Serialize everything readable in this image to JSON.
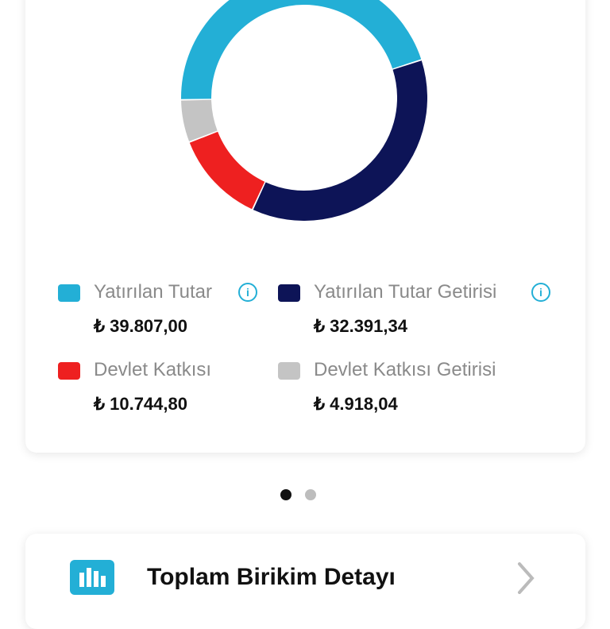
{
  "chart_data": {
    "type": "donut",
    "categories": [
      "Yatırılan Tutar",
      "Yatırılan Tutar Getirisi",
      "Devlet Katkısı",
      "Devlet Katkısı Getirisi"
    ],
    "values": [
      39807.0,
      32391.34,
      10744.8,
      4918.04
    ],
    "value_labels": [
      "₺ 39.807,00",
      "₺ 32.391,34",
      "₺ 10.744,80",
      "₺ 4.918,04"
    ],
    "colors": [
      "#23afd6",
      "#0d1457",
      "#ee2020",
      "#c4c4c4"
    ]
  },
  "detail_card": {
    "title": "Toplam Birikim Detayı"
  }
}
